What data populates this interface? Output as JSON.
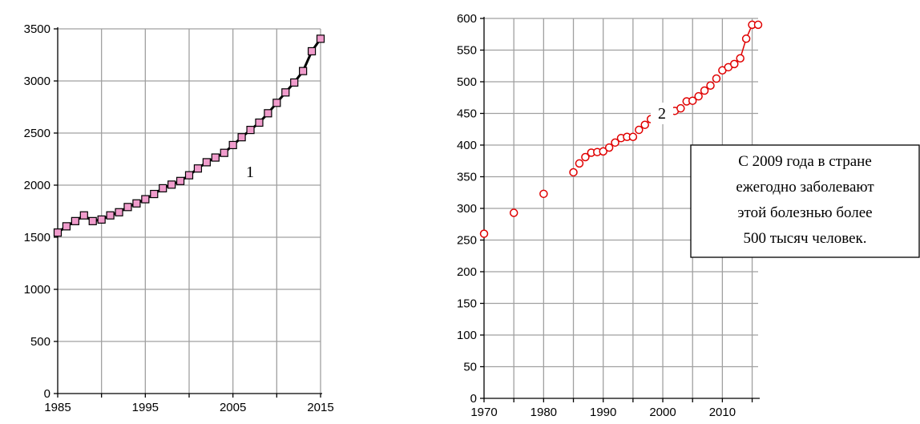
{
  "chart_data": [
    {
      "type": "line",
      "title": "",
      "xlabel": "",
      "ylabel": "",
      "xlim": [
        1985,
        2015
      ],
      "ylim": [
        0,
        3500
      ],
      "x_ticks": [
        1985,
        1995,
        2005,
        2015
      ],
      "y_ticks": [
        0,
        500,
        1000,
        1500,
        2000,
        2500,
        3000,
        3500
      ],
      "grid": true,
      "marker": "square",
      "line_color": "#000000",
      "marker_color": "#f09ccc",
      "label": "1",
      "series": [
        {
          "x": [
            1985,
            1986,
            1987,
            1988,
            1989,
            1990,
            1991,
            1992,
            1993,
            1994,
            1995,
            1996,
            1997,
            1998,
            1999,
            2000,
            2001,
            2002,
            2003,
            2004,
            2005,
            2006,
            2007,
            2008,
            2009,
            2010,
            2011,
            2012,
            2013,
            2014,
            2015
          ],
          "y": [
            1545,
            1605,
            1655,
            1710,
            1655,
            1670,
            1710,
            1740,
            1790,
            1825,
            1865,
            1915,
            1970,
            2005,
            2040,
            2095,
            2160,
            2220,
            2265,
            2310,
            2385,
            2460,
            2530,
            2600,
            2690,
            2790,
            2890,
            2985,
            3095,
            3285,
            3405
          ]
        }
      ]
    },
    {
      "type": "scatter",
      "title": "",
      "xlabel": "",
      "ylabel": "",
      "xlim": [
        1970,
        2016
      ],
      "ylim": [
        0,
        600
      ],
      "x_ticks": [
        1970,
        1980,
        1990,
        2000,
        2010
      ],
      "y_ticks": [
        0,
        50,
        100,
        150,
        200,
        250,
        300,
        350,
        400,
        450,
        500,
        550,
        600
      ],
      "grid": true,
      "marker": "open-circle",
      "color": "#e00000",
      "label": "2",
      "annotation": [
        "С 2009 года в стране",
        "ежегодно заболевают",
        "этой болезнью более",
        "500 тысяч человек."
      ],
      "series": [
        {
          "x": [
            1970,
            1975,
            1980,
            1985,
            1986,
            1987,
            1988,
            1989,
            1990,
            1991,
            1992,
            1993,
            1994,
            1995,
            1996,
            1997,
            1998,
            1999,
            2000,
            2001,
            2002,
            2003,
            2004,
            2005,
            2006,
            2007,
            2008,
            2009,
            2010,
            2011,
            2012,
            2013,
            2014,
            2015,
            2016
          ],
          "y": [
            260,
            293,
            323,
            357,
            371,
            381,
            388,
            389,
            390,
            396,
            404,
            411,
            413,
            413,
            424,
            432,
            441,
            442,
            449,
            452,
            454,
            458,
            469,
            470,
            477,
            486,
            494,
            505,
            518,
            523,
            528,
            537,
            568,
            590,
            590
          ],
          "connected_from": 2013
        }
      ]
    }
  ]
}
